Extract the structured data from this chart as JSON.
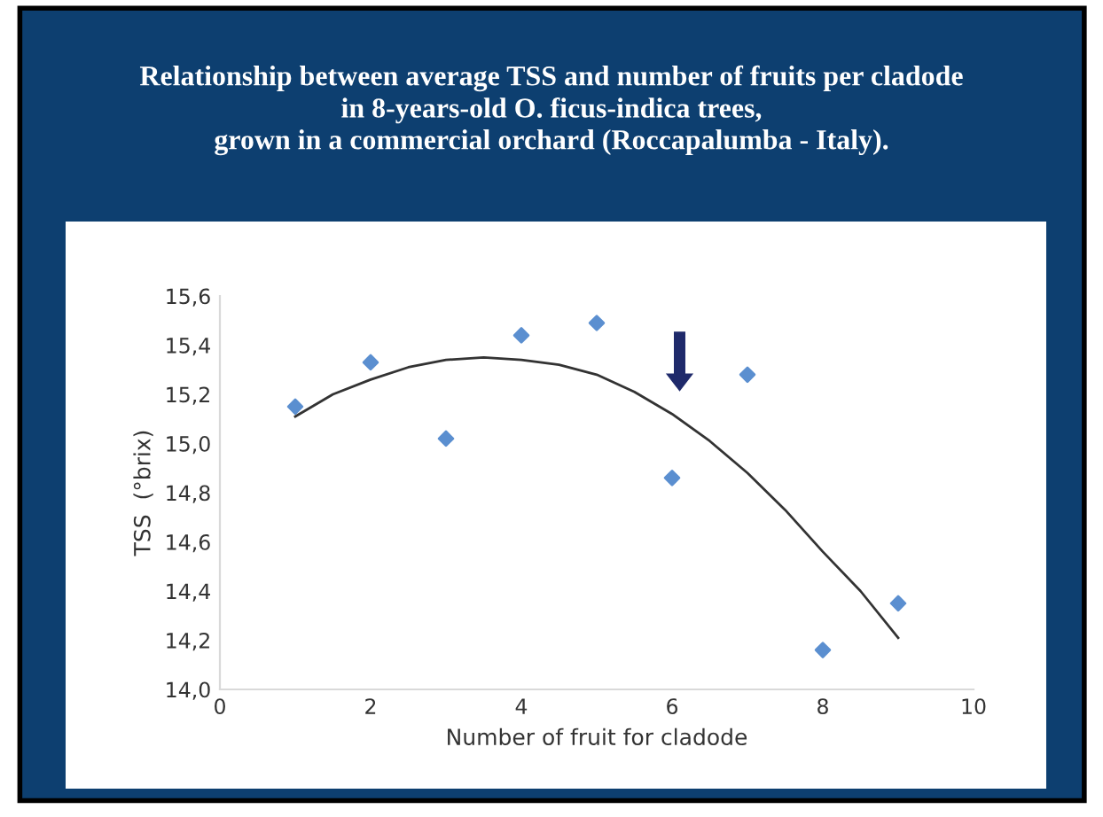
{
  "chart_data": {
    "type": "scatter",
    "title": "Relationship between average TSS and number of fruits per cladode\nin 8-years-old O. ficus-indica trees,\ngrown in a commercial orchard (Roccapalumba - Italy).",
    "xlabel": "Number of fruit for cladode",
    "ylabel": "TSS  (°brix)",
    "series": [
      {
        "color": "#5b8fd0",
        "marker": "diamond",
        "x": [
          1,
          2,
          3,
          4,
          5,
          6,
          7,
          8,
          9
        ],
        "values": [
          15.15,
          15.33,
          15.02,
          15.44,
          15.49,
          14.86,
          15.28,
          14.16,
          14.35
        ]
      },
      {
        "type": "line",
        "color": "#333333",
        "marker": "none",
        "line_style": "solid",
        "x": [
          1,
          1.5,
          2,
          2.5,
          3,
          3.5,
          4,
          4.5,
          5,
          5.5,
          6,
          6.5,
          7,
          7.5,
          8,
          8.5,
          9
        ],
        "values": [
          15.11,
          15.2,
          15.26,
          15.31,
          15.34,
          15.35,
          15.34,
          15.32,
          15.28,
          15.21,
          15.12,
          15.01,
          14.88,
          14.73,
          14.56,
          14.4,
          14.21
        ]
      }
    ],
    "xlim": [
      0,
      10
    ],
    "xticks": [
      0,
      2,
      4,
      6,
      8,
      10
    ],
    "ylim": [
      14.0,
      15.6
    ],
    "yticks": [
      {
        "value": 14.0,
        "label": "14,0"
      },
      {
        "value": 14.2,
        "label": "14,2"
      },
      {
        "value": 14.4,
        "label": "14,4"
      },
      {
        "value": 14.6,
        "label": "14,6"
      },
      {
        "value": 14.8,
        "label": "14,8"
      },
      {
        "value": 15.0,
        "label": "15,0"
      },
      {
        "value": 15.2,
        "label": "15,2"
      },
      {
        "value": 15.4,
        "label": "15,4"
      },
      {
        "value": 15.6,
        "label": "15,6"
      }
    ],
    "grid": false,
    "legend": false
  }
}
